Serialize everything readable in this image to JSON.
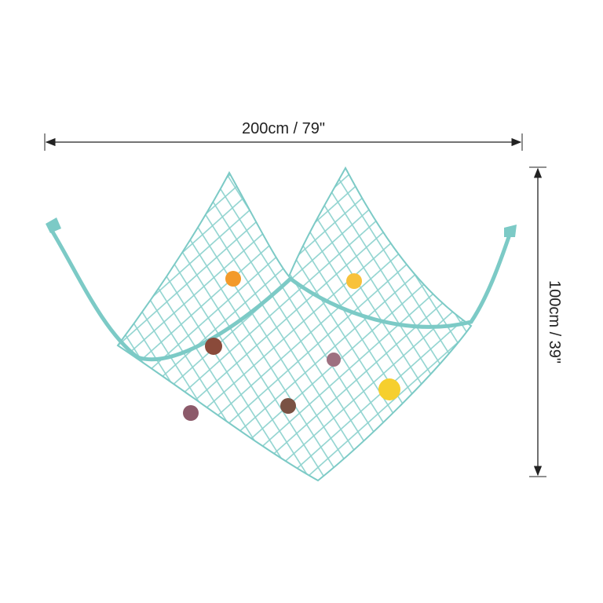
{
  "dimensions": {
    "width": "200cm / 79\"",
    "height": "100cm / 39\""
  }
}
